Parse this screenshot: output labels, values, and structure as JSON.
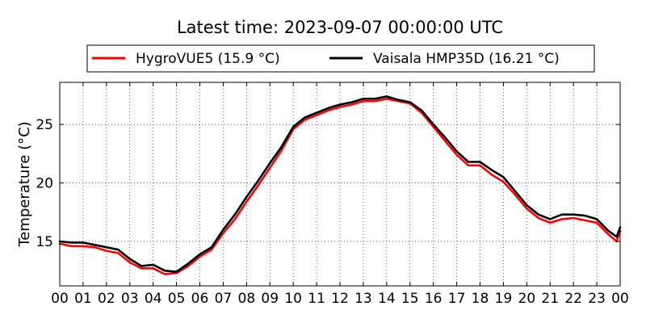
{
  "chart_data": {
    "type": "line",
    "title": "Latest time: 2023-09-07 00:00:00 UTC",
    "xlabel": "",
    "ylabel": "Temperature (°C)",
    "x_unit": "hour of day (UTC)",
    "xlim": [
      0,
      24
    ],
    "ylim": [
      11.2,
      28.6
    ],
    "xticks": [
      "00",
      "01",
      "02",
      "03",
      "04",
      "05",
      "06",
      "07",
      "08",
      "09",
      "10",
      "11",
      "12",
      "13",
      "14",
      "15",
      "16",
      "17",
      "18",
      "19",
      "20",
      "21",
      "22",
      "23",
      "00"
    ],
    "yticks": [
      15,
      20,
      25
    ],
    "grid": true,
    "legend_position": "top-center",
    "x": [
      0,
      0.5,
      1,
      1.5,
      2,
      2.5,
      3,
      3.5,
      4,
      4.5,
      5,
      5.5,
      6,
      6.5,
      7,
      7.5,
      8,
      8.5,
      9,
      9.5,
      10,
      10.5,
      11,
      11.5,
      12,
      12.5,
      13,
      13.5,
      14,
      14.5,
      15,
      15.5,
      16,
      16.5,
      17,
      17.5,
      18,
      18.5,
      19,
      19.5,
      20,
      20.5,
      21,
      21.5,
      22,
      22.5,
      23,
      23.5,
      23.85,
      24
    ],
    "series": [
      {
        "name": "HygroVUE5 (15.9 °C)",
        "color": "#ff0000",
        "values": [
          14.8,
          14.6,
          14.6,
          14.5,
          14.2,
          14.0,
          13.2,
          12.7,
          12.7,
          12.2,
          12.3,
          12.9,
          13.7,
          14.3,
          15.7,
          16.9,
          18.4,
          19.8,
          21.3,
          22.8,
          24.6,
          25.4,
          25.8,
          26.2,
          26.5,
          26.7,
          27.0,
          27.0,
          27.2,
          27.0,
          26.8,
          26.0,
          24.8,
          23.6,
          22.4,
          21.5,
          21.5,
          20.7,
          20.1,
          19.0,
          17.8,
          17.0,
          16.6,
          16.9,
          17.0,
          16.8,
          16.6,
          15.6,
          15.0,
          15.9
        ]
      },
      {
        "name": "Vaisala HMP35D (16.21 °C)",
        "color": "#000000",
        "values": [
          15.0,
          14.9,
          14.9,
          14.7,
          14.5,
          14.3,
          13.5,
          12.9,
          13.0,
          12.5,
          12.4,
          13.1,
          13.9,
          14.5,
          16.0,
          17.3,
          18.8,
          20.2,
          21.7,
          23.1,
          24.8,
          25.6,
          26.0,
          26.4,
          26.7,
          26.9,
          27.2,
          27.2,
          27.4,
          27.1,
          26.9,
          26.2,
          25.0,
          23.9,
          22.7,
          21.8,
          21.8,
          21.1,
          20.5,
          19.3,
          18.1,
          17.3,
          16.9,
          17.3,
          17.3,
          17.2,
          16.9,
          15.9,
          15.4,
          16.21
        ]
      }
    ]
  }
}
